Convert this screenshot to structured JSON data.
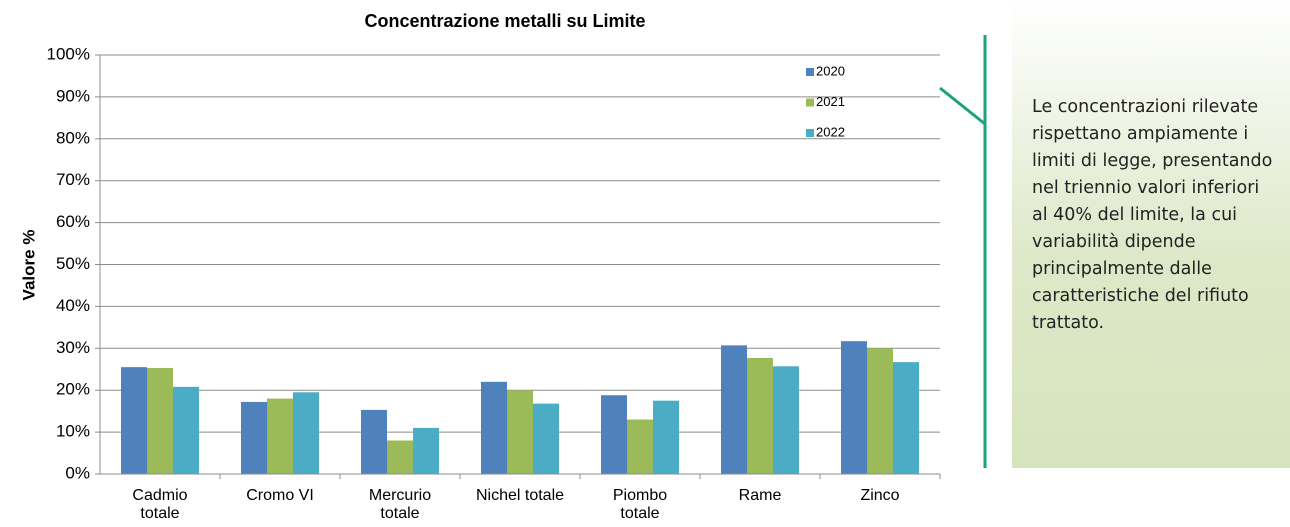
{
  "chart_data": {
    "type": "bar",
    "title": "Concentrazione metalli su Limite",
    "ylabel": "Valore %",
    "annotation": "Le concentrazioni rilevate rispettano ampiamente i limiti di legge, presentando nel triennio valori inferiori al 40% del limite, la cui variabilità dipende principalmente dalle caratteristiche del rifiuto trattato.",
    "categories": [
      "Cadmio totale",
      "Cromo VI",
      "Mercurio totale",
      "Nichel totale",
      "Piombo totale",
      "Rame",
      "Zinco"
    ],
    "series": [
      {
        "name": "2020",
        "color": "#4f81bd",
        "values": [
          25.5,
          17.2,
          15.3,
          22,
          18.8,
          30.7,
          31.7
        ]
      },
      {
        "name": "2021",
        "color": "#9bbb59",
        "values": [
          25.3,
          18,
          8,
          20,
          13,
          27.7,
          30
        ]
      },
      {
        "name": "2022",
        "color": "#4bacc6",
        "values": [
          20.8,
          19.5,
          11,
          16.8,
          17.5,
          25.7,
          26.7
        ]
      }
    ],
    "ylim": [
      0,
      100
    ],
    "yticks": [
      {
        "value": 0,
        "label": "0%"
      },
      {
        "value": 10,
        "label": "10%"
      },
      {
        "value": 20,
        "label": "20%"
      },
      {
        "value": 30,
        "label": "30%"
      },
      {
        "value": 40,
        "label": "40%"
      },
      {
        "value": 50,
        "label": "50%"
      },
      {
        "value": 60,
        "label": "60%"
      },
      {
        "value": 70,
        "label": "70%"
      },
      {
        "value": 80,
        "label": "80%"
      },
      {
        "value": 90,
        "label": "90%"
      },
      {
        "value": 100,
        "label": "100%"
      }
    ],
    "grid": true,
    "legend": "upper right"
  }
}
